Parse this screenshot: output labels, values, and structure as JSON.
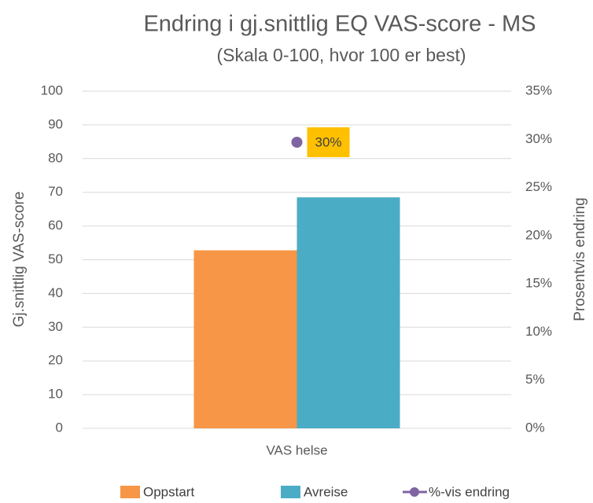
{
  "chart_data": {
    "type": "bar",
    "title": "Endring i gj.snittlig EQ VAS-score - MS",
    "subtitle": "(Skala 0-100, hvor 100 er best)",
    "y_label": "Gj.snittlig VAS-score",
    "y2_label": "Prosentvis endring",
    "categories": [
      "VAS helse"
    ],
    "series": [
      {
        "name": "Oppstart",
        "color": "#f79646",
        "values": [
          52.8
        ]
      },
      {
        "name": "Avreise",
        "color": "#4bacc6",
        "values": [
          68.5
        ]
      },
      {
        "name": "%-vis endring",
        "color": "#8064a2",
        "type": "line",
        "axis": "y2",
        "values": [
          29.7
        ],
        "value_labels": [
          "30%"
        ],
        "label_color": "#ffc000"
      }
    ],
    "ylim": [
      0,
      100
    ],
    "yticks": [
      0,
      10,
      20,
      30,
      40,
      50,
      60,
      70,
      80,
      90,
      100
    ],
    "y2lim": [
      0,
      35
    ],
    "y2ticks": [
      {
        "value": 0,
        "label": "0%"
      },
      {
        "value": 5,
        "label": "5%"
      },
      {
        "value": 10,
        "label": "10%"
      },
      {
        "value": 15,
        "label": "15%"
      },
      {
        "value": 20,
        "label": "20%"
      },
      {
        "value": 25,
        "label": "25%"
      },
      {
        "value": 30,
        "label": "30%"
      },
      {
        "value": 35,
        "label": "35%"
      }
    ],
    "grid": true,
    "legend": "bottom"
  }
}
